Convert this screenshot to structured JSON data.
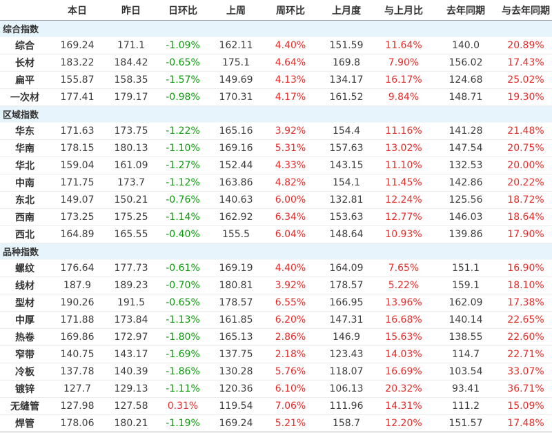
{
  "colors": {
    "positive_change": "#e62c29",
    "negative_change": "#0b9b0b",
    "section_background": "#e8f4fc",
    "text": "#333333"
  },
  "table": {
    "columns": [
      "",
      "本日",
      "昨日",
      "日环比",
      "上周",
      "周环比",
      "上月度",
      "与上月比",
      "去年同期",
      "与去年同期"
    ],
    "sections": [
      {
        "title": "综合指数",
        "rows": [
          {
            "label": "综合",
            "values": [
              "169.24",
              "171.1",
              "-1.09%",
              "162.11",
              "4.40%",
              "151.59",
              "11.64%",
              "140.0",
              "20.89%"
            ]
          },
          {
            "label": "长材",
            "values": [
              "183.22",
              "184.42",
              "-0.65%",
              "175.1",
              "4.64%",
              "169.8",
              "7.90%",
              "156.02",
              "17.43%"
            ]
          },
          {
            "label": "扁平",
            "values": [
              "155.87",
              "158.35",
              "-1.57%",
              "149.69",
              "4.13%",
              "134.17",
              "16.17%",
              "124.68",
              "25.02%"
            ]
          },
          {
            "label": "一次材",
            "values": [
              "177.41",
              "179.17",
              "-0.98%",
              "170.31",
              "4.17%",
              "161.52",
              "9.84%",
              "148.71",
              "19.30%"
            ]
          }
        ]
      },
      {
        "title": "区域指数",
        "rows": [
          {
            "label": "华东",
            "values": [
              "171.63",
              "173.75",
              "-1.22%",
              "165.16",
              "3.92%",
              "154.4",
              "11.16%",
              "141.28",
              "21.48%"
            ]
          },
          {
            "label": "华南",
            "values": [
              "178.15",
              "180.13",
              "-1.10%",
              "169.16",
              "5.31%",
              "157.63",
              "13.02%",
              "147.54",
              "20.75%"
            ]
          },
          {
            "label": "华北",
            "values": [
              "159.04",
              "161.09",
              "-1.27%",
              "152.44",
              "4.33%",
              "143.15",
              "11.10%",
              "132.53",
              "20.00%"
            ]
          },
          {
            "label": "中南",
            "values": [
              "171.75",
              "173.7",
              "-1.12%",
              "163.86",
              "4.82%",
              "154.1",
              "11.45%",
              "142.86",
              "20.22%"
            ]
          },
          {
            "label": "东北",
            "values": [
              "149.07",
              "150.21",
              "-0.76%",
              "140.63",
              "6.00%",
              "132.81",
              "12.24%",
              "125.56",
              "18.72%"
            ]
          },
          {
            "label": "西南",
            "values": [
              "173.25",
              "175.25",
              "-1.14%",
              "162.92",
              "6.34%",
              "153.63",
              "12.77%",
              "146.03",
              "18.64%"
            ]
          },
          {
            "label": "西北",
            "values": [
              "164.89",
              "165.55",
              "-0.40%",
              "155.5",
              "6.04%",
              "148.64",
              "10.93%",
              "139.86",
              "17.90%"
            ]
          }
        ]
      },
      {
        "title": "品种指数",
        "rows": [
          {
            "label": "螺纹",
            "values": [
              "176.64",
              "177.73",
              "-0.61%",
              "169.19",
              "4.40%",
              "164.09",
              "7.65%",
              "151.1",
              "16.90%"
            ]
          },
          {
            "label": "线材",
            "values": [
              "187.9",
              "189.23",
              "-0.70%",
              "180.81",
              "3.92%",
              "178.57",
              "5.22%",
              "159.1",
              "18.10%"
            ]
          },
          {
            "label": "型材",
            "values": [
              "190.26",
              "191.5",
              "-0.65%",
              "178.57",
              "6.55%",
              "166.95",
              "13.96%",
              "162.09",
              "17.38%"
            ]
          },
          {
            "label": "中厚",
            "values": [
              "171.88",
              "173.84",
              "-1.13%",
              "161.85",
              "6.20%",
              "147.31",
              "16.68%",
              "140.14",
              "22.65%"
            ]
          },
          {
            "label": "热卷",
            "values": [
              "169.86",
              "172.97",
              "-1.80%",
              "165.13",
              "2.86%",
              "146.9",
              "15.63%",
              "138.55",
              "22.60%"
            ]
          },
          {
            "label": "窄带",
            "values": [
              "140.75",
              "143.17",
              "-1.69%",
              "137.75",
              "2.18%",
              "123.43",
              "14.03%",
              "114.7",
              "22.71%"
            ]
          },
          {
            "label": "冷板",
            "values": [
              "137.78",
              "140.39",
              "-1.86%",
              "130.28",
              "5.76%",
              "118.07",
              "16.69%",
              "103.54",
              "33.07%"
            ]
          },
          {
            "label": "镀锌",
            "values": [
              "127.7",
              "129.13",
              "-1.11%",
              "120.36",
              "6.10%",
              "106.13",
              "20.32%",
              "93.41",
              "36.71%"
            ]
          },
          {
            "label": "无缝管",
            "values": [
              "127.98",
              "127.58",
              "0.31%",
              "119.54",
              "7.06%",
              "111.96",
              "14.31%",
              "111.2",
              "15.09%"
            ]
          },
          {
            "label": "焊管",
            "values": [
              "178.06",
              "180.21",
              "-1.19%",
              "169.24",
              "5.21%",
              "158.7",
              "12.20%",
              "151.57",
              "17.48%"
            ]
          }
        ]
      }
    ]
  }
}
